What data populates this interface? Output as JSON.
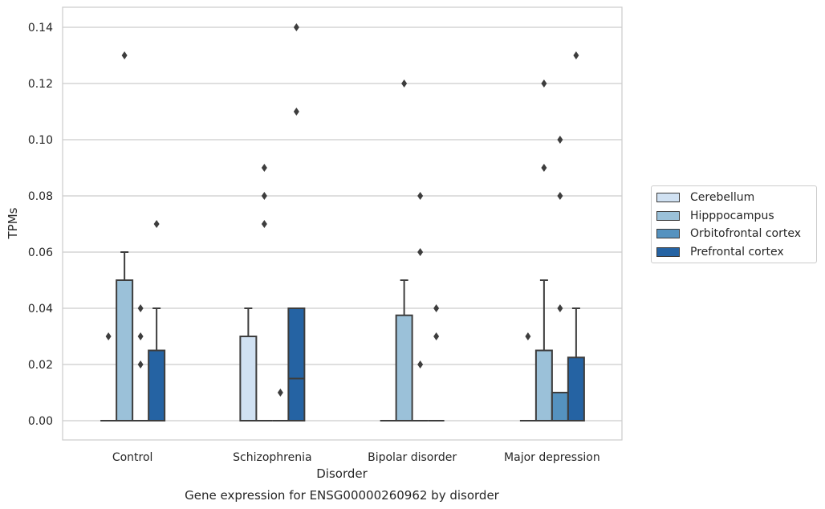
{
  "chart_data": {
    "type": "box",
    "title": "",
    "caption": "Gene expression for ENSG00000260962 by disorder",
    "xlabel": "Disorder",
    "ylabel": "TPMs",
    "ylim": [
      -0.007,
      0.147
    ],
    "yticks": [
      "0.00",
      "0.02",
      "0.04",
      "0.06",
      "0.08",
      "0.10",
      "0.12",
      "0.14"
    ],
    "ytick_values": [
      0,
      0.02,
      0.04,
      0.06,
      0.08,
      0.1,
      0.12,
      0.14
    ],
    "grid": "horizontal",
    "legend_position": "right",
    "categories": [
      "Control",
      "Schizophrenia",
      "Bipolar disorder",
      "Major depression"
    ],
    "series": [
      {
        "name": "Cerebellum",
        "color": "#d0e1f2",
        "boxes": [
          {
            "q1": 0,
            "median": 0,
            "q3": 0,
            "whisker_low": 0,
            "whisker_high": 0,
            "outliers": [
              0.03
            ]
          },
          {
            "q1": 0,
            "median": 0,
            "q3": 0.03,
            "whisker_low": 0,
            "whisker_high": 0.04,
            "outliers": []
          },
          {
            "q1": 0,
            "median": 0,
            "q3": 0,
            "whisker_low": 0,
            "whisker_high": 0,
            "outliers": []
          },
          {
            "q1": 0,
            "median": 0,
            "q3": 0,
            "whisker_low": 0,
            "whisker_high": 0,
            "outliers": [
              0.03
            ]
          }
        ]
      },
      {
        "name": "Hipppocampus",
        "color": "#9bc1d9",
        "boxes": [
          {
            "q1": 0,
            "median": 0,
            "q3": 0.05,
            "whisker_low": 0,
            "whisker_high": 0.06,
            "outliers": [
              0.13
            ]
          },
          {
            "q1": 0,
            "median": 0,
            "q3": 0,
            "whisker_low": 0,
            "whisker_high": 0,
            "outliers": [
              0.07,
              0.08,
              0.09
            ]
          },
          {
            "q1": 0,
            "median": 0,
            "q3": 0.0375,
            "whisker_low": 0,
            "whisker_high": 0.05,
            "outliers": [
              0.12
            ]
          },
          {
            "q1": 0,
            "median": 0,
            "q3": 0.025,
            "whisker_low": 0,
            "whisker_high": 0.05,
            "outliers": [
              0.09,
              0.12
            ]
          }
        ]
      },
      {
        "name": "Orbitofrontal cortex",
        "color": "#5592bf",
        "boxes": [
          {
            "q1": 0,
            "median": 0,
            "q3": 0,
            "whisker_low": 0,
            "whisker_high": 0,
            "outliers": [
              0.02,
              0.03,
              0.04
            ]
          },
          {
            "q1": 0,
            "median": 0,
            "q3": 0,
            "whisker_low": 0,
            "whisker_high": 0,
            "outliers": [
              0.01
            ]
          },
          {
            "q1": 0,
            "median": 0,
            "q3": 0,
            "whisker_low": 0,
            "whisker_high": 0,
            "outliers": [
              0.02,
              0.06,
              0.08
            ]
          },
          {
            "q1": 0,
            "median": 0,
            "q3": 0.01,
            "whisker_low": 0,
            "whisker_high": 0.01,
            "outliers": [
              0.04,
              0.08,
              0.1
            ]
          }
        ]
      },
      {
        "name": "Prefrontal cortex",
        "color": "#2563a3",
        "boxes": [
          {
            "q1": 0,
            "median": 0,
            "q3": 0.025,
            "whisker_low": 0,
            "whisker_high": 0.04,
            "outliers": [
              0.07
            ]
          },
          {
            "q1": 0,
            "median": 0.015,
            "q3": 0.04,
            "whisker_low": 0,
            "whisker_high": 0.04,
            "outliers": [
              0.11,
              0.14
            ]
          },
          {
            "q1": 0,
            "median": 0,
            "q3": 0,
            "whisker_low": 0,
            "whisker_high": 0,
            "outliers": [
              0.03,
              0.04
            ]
          },
          {
            "q1": 0,
            "median": 0,
            "q3": 0.0225,
            "whisker_low": 0,
            "whisker_high": 0.04,
            "outliers": [
              0.13
            ]
          }
        ]
      }
    ]
  }
}
